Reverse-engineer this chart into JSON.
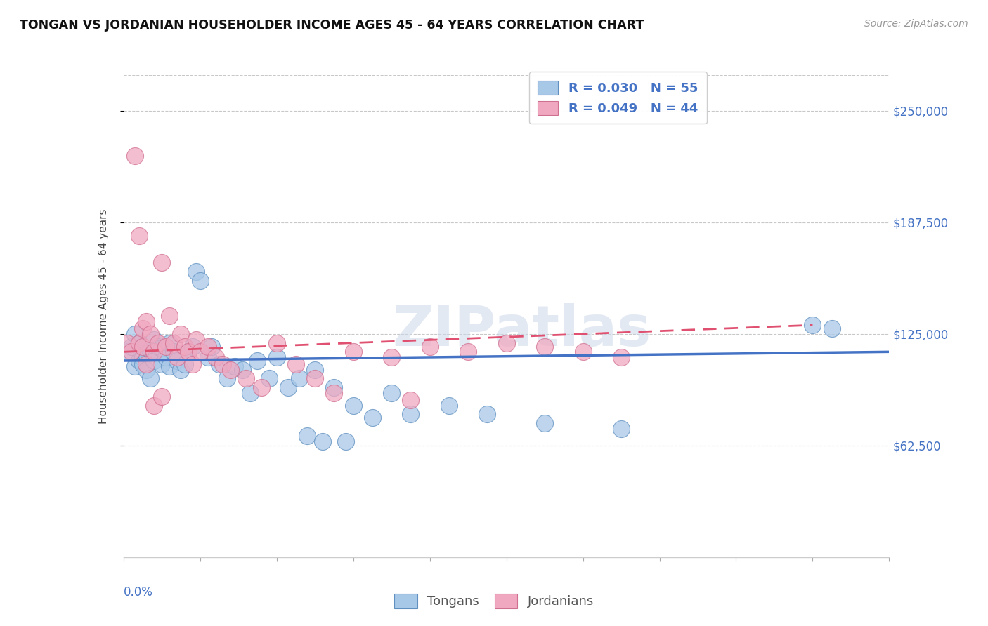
{
  "title": "TONGAN VS JORDANIAN HOUSEHOLDER INCOME AGES 45 - 64 YEARS CORRELATION CHART",
  "source": "Source: ZipAtlas.com",
  "ylabel": "Householder Income Ages 45 - 64 years",
  "ytick_labels": [
    "$62,500",
    "$125,000",
    "$187,500",
    "$250,000"
  ],
  "ytick_values": [
    62500,
    125000,
    187500,
    250000
  ],
  "xlim": [
    0.0,
    0.2
  ],
  "ylim": [
    0,
    270000
  ],
  "watermark": "ZIPatlas",
  "tongans_color": "#a8c8e8",
  "jordanians_color": "#f0a8c0",
  "tongans_edge": "#6090c0",
  "jordanians_edge": "#d07090",
  "trend_tongans_color": "#4472c4",
  "trend_jordanians_color": "#e05070",
  "tongans_x": [
    0.001,
    0.002,
    0.003,
    0.003,
    0.004,
    0.004,
    0.005,
    0.005,
    0.006,
    0.006,
    0.007,
    0.007,
    0.008,
    0.008,
    0.009,
    0.01,
    0.01,
    0.011,
    0.012,
    0.012,
    0.013,
    0.014,
    0.015,
    0.016,
    0.017,
    0.018,
    0.019,
    0.02,
    0.022,
    0.023,
    0.025,
    0.027,
    0.029,
    0.031,
    0.033,
    0.035,
    0.038,
    0.04,
    0.043,
    0.046,
    0.05,
    0.055,
    0.06,
    0.065,
    0.07,
    0.075,
    0.085,
    0.095,
    0.11,
    0.13,
    0.048,
    0.052,
    0.058,
    0.18,
    0.185
  ],
  "tongans_y": [
    115000,
    118000,
    107000,
    125000,
    120000,
    110000,
    112000,
    108000,
    114000,
    105000,
    116000,
    100000,
    122000,
    110000,
    118000,
    108000,
    117000,
    112000,
    107000,
    120000,
    115000,
    110000,
    105000,
    108000,
    115000,
    118000,
    160000,
    155000,
    112000,
    118000,
    108000,
    100000,
    107000,
    105000,
    92000,
    110000,
    100000,
    112000,
    95000,
    100000,
    105000,
    95000,
    85000,
    78000,
    92000,
    80000,
    85000,
    80000,
    75000,
    72000,
    68000,
    65000,
    65000,
    130000,
    128000
  ],
  "jordanians_x": [
    0.001,
    0.002,
    0.003,
    0.004,
    0.004,
    0.005,
    0.005,
    0.006,
    0.006,
    0.007,
    0.008,
    0.009,
    0.01,
    0.011,
    0.012,
    0.013,
    0.014,
    0.015,
    0.016,
    0.017,
    0.018,
    0.019,
    0.02,
    0.022,
    0.024,
    0.026,
    0.028,
    0.032,
    0.036,
    0.04,
    0.045,
    0.05,
    0.06,
    0.07,
    0.08,
    0.09,
    0.1,
    0.11,
    0.12,
    0.13,
    0.008,
    0.01,
    0.055,
    0.075
  ],
  "jordanians_y": [
    120000,
    115000,
    225000,
    120000,
    180000,
    128000,
    118000,
    132000,
    108000,
    125000,
    115000,
    120000,
    165000,
    118000,
    135000,
    120000,
    112000,
    125000,
    118000,
    115000,
    108000,
    122000,
    115000,
    118000,
    112000,
    108000,
    105000,
    100000,
    95000,
    120000,
    108000,
    100000,
    115000,
    112000,
    118000,
    115000,
    120000,
    118000,
    115000,
    112000,
    85000,
    90000,
    92000,
    88000
  ],
  "trend_t_x0": 0.0,
  "trend_t_x1": 0.2,
  "trend_t_y0": 110000,
  "trend_t_y1": 115000,
  "trend_j_x0": 0.0,
  "trend_j_x1": 0.18,
  "trend_j_y0": 115000,
  "trend_j_y1": 130000
}
